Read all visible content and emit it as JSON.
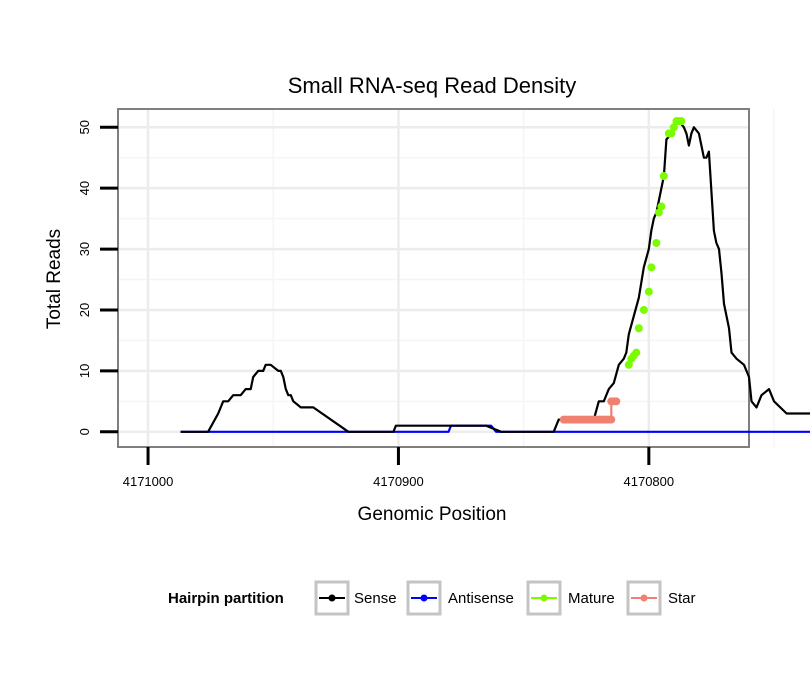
{
  "chart_data": {
    "type": "line",
    "title": "Small RNA-seq Read Density",
    "xlabel": "Genomic Position",
    "ylabel": "Total Reads",
    "xlim": [
      4171012,
      4170760
    ],
    "ylim": [
      -2.5,
      53
    ],
    "x_reversed": true,
    "x_ticks": [
      4171000,
      4170900,
      4170800
    ],
    "x_tick_labels": [
      "4171000",
      "4170900",
      "4170800"
    ],
    "y_ticks": [
      0,
      10,
      20,
      30,
      40,
      50
    ],
    "y_tick_labels": [
      "0",
      "10",
      "20",
      "30",
      "40",
      "50"
    ],
    "grid": true,
    "legend": {
      "title": "Hairpin partition",
      "position": "bottom",
      "entries": [
        {
          "name": "Sense",
          "color": "#000000"
        },
        {
          "name": "Antisense",
          "color": "#0000ff"
        },
        {
          "name": "Mature",
          "color": "#7cfc00"
        },
        {
          "name": "Star",
          "color": "#f08070"
        }
      ]
    },
    "series": [
      {
        "name": "Sense",
        "color": "#000000",
        "style": "line",
        "x": [
          4170987,
          4170976,
          4170972,
          4170970,
          4170968,
          4170966,
          4170963,
          4170961,
          4170959,
          4170958,
          4170956,
          4170954,
          4170953,
          4170951,
          4170948,
          4170947,
          4170946,
          4170945,
          4170944,
          4170943,
          4170942,
          4170939,
          4170937,
          4170935,
          4170934,
          4170920,
          4170919,
          4170902,
          4170901,
          4170865,
          4170859,
          4170857,
          4170854,
          4170852,
          4170850,
          4170848,
          4170846,
          4170844,
          4170843,
          4170841,
          4170839,
          4170838,
          4170836,
          4170834,
          4170832,
          4170830,
          4170828,
          4170826,
          4170824,
          4170822,
          4170820,
          4170818,
          4170816,
          4170814,
          4170812,
          4170810,
          4170809,
          4170808,
          4170806,
          4170804,
          4170802,
          4170800,
          4170799,
          4170798,
          4170797,
          4170796,
          4170794,
          4170793,
          4170791,
          4170790,
          4170789,
          4170788,
          4170786,
          4170785,
          4170784,
          4170783,
          4170782,
          4170780,
          4170778,
          4170777,
          4170776,
          4170774,
          4170773,
          4170772,
          4170771,
          4170770,
          4170768,
          4170767,
          4170765,
          4170762,
          4170760,
          4170759,
          4170757,
          4170755,
          4170752,
          4170750,
          4170745,
          4170740,
          4170730,
          4170720,
          4170712
        ],
        "y": [
          0,
          0,
          3,
          5,
          5,
          6,
          6,
          7,
          7,
          9,
          10,
          10,
          11,
          11,
          10,
          10,
          9,
          7,
          6,
          6,
          5,
          4,
          4,
          4,
          4,
          0,
          0,
          0,
          1,
          1,
          0,
          0,
          0,
          0,
          0,
          0,
          0,
          0,
          0,
          0,
          0,
          0,
          2,
          2,
          2,
          2,
          2,
          2,
          2,
          2,
          5,
          5,
          7,
          8,
          11,
          12,
          13,
          16,
          19,
          22,
          27,
          30,
          33,
          35,
          36,
          38,
          42,
          48,
          49,
          50,
          51,
          51,
          50,
          49,
          47,
          49,
          50,
          49,
          45,
          45,
          46,
          33,
          31,
          30,
          26,
          21,
          17,
          13,
          12,
          11,
          9,
          5,
          4,
          6,
          7,
          5,
          3,
          3,
          3,
          3,
          3
        ]
      },
      {
        "name": "Antisense",
        "color": "#0000ff",
        "style": "line",
        "x": [
          4170987,
          4170899,
          4170880,
          4170879,
          4170863,
          4170861,
          4170712
        ],
        "y": [
          0,
          0,
          0,
          1,
          1,
          0,
          0
        ]
      },
      {
        "name": "Mature",
        "color": "#7cfc00",
        "style": "points",
        "x": [
          4170808,
          4170807,
          4170806,
          4170805,
          4170804,
          4170802,
          4170800,
          4170799,
          4170797,
          4170796,
          4170795,
          4170794,
          4170792,
          4170791,
          4170790,
          4170789,
          4170788,
          4170787
        ],
        "y": [
          11,
          12,
          12.5,
          13,
          17,
          20,
          23,
          27,
          31,
          36,
          37,
          42,
          49,
          49,
          50,
          51,
          51,
          51
        ]
      },
      {
        "name": "Star",
        "color": "#f08070",
        "style": "line-points",
        "x": [
          4170834,
          4170833,
          4170832,
          4170831,
          4170830,
          4170829,
          4170828,
          4170827,
          4170826,
          4170825,
          4170824,
          4170823,
          4170822,
          4170821,
          4170820,
          4170819,
          4170818,
          4170817,
          4170816,
          4170815,
          4170815,
          4170814,
          4170813
        ],
        "y": [
          2,
          2,
          2,
          2,
          2,
          2,
          2,
          2,
          2,
          2,
          2,
          2,
          2,
          2,
          2,
          2,
          2,
          2,
          2,
          2,
          5,
          5,
          5
        ]
      }
    ]
  }
}
